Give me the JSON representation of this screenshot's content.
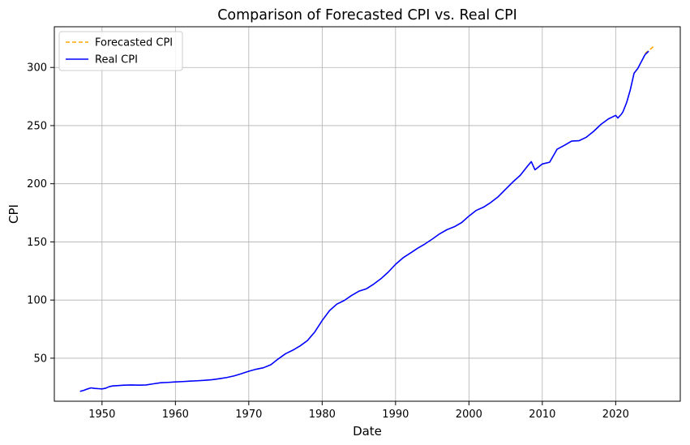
{
  "chart_data": {
    "type": "line",
    "title": "Comparison of Forecasted CPI vs. Real CPI",
    "xlabel": "Date",
    "ylabel": "CPI",
    "xlim": [
      1943.5,
      2028.8
    ],
    "ylim": [
      13,
      335
    ],
    "xticks": [
      1950,
      1960,
      1970,
      1980,
      1990,
      2000,
      2010,
      2020
    ],
    "yticks": [
      50,
      100,
      150,
      200,
      250,
      300
    ],
    "grid": true,
    "legend_position": "upper-left",
    "series": [
      {
        "name": "Forecasted CPI",
        "color": "#ffa500",
        "style": "dashed",
        "points": [
          [
            2024.0,
            312.0
          ],
          [
            2024.3,
            313.6
          ],
          [
            2024.6,
            315.0
          ],
          [
            2024.9,
            316.6
          ],
          [
            2025.2,
            318.2
          ]
        ]
      },
      {
        "name": "Real CPI",
        "color": "#0000ff",
        "style": "solid",
        "points": [
          [
            1947.0,
            21.5
          ],
          [
            1947.5,
            22.3
          ],
          [
            1948.0,
            23.5
          ],
          [
            1948.5,
            24.5
          ],
          [
            1949.0,
            24.0
          ],
          [
            1949.5,
            23.8
          ],
          [
            1950.0,
            23.6
          ],
          [
            1950.5,
            24.2
          ],
          [
            1951.0,
            25.6
          ],
          [
            1951.5,
            26.2
          ],
          [
            1952.0,
            26.4
          ],
          [
            1953.0,
            26.8
          ],
          [
            1954.0,
            27.0
          ],
          [
            1955.0,
            26.8
          ],
          [
            1956.0,
            27.0
          ],
          [
            1957.0,
            28.0
          ],
          [
            1958.0,
            28.9
          ],
          [
            1959.0,
            29.2
          ],
          [
            1960.0,
            29.6
          ],
          [
            1961.0,
            29.9
          ],
          [
            1962.0,
            30.3
          ],
          [
            1963.0,
            30.6
          ],
          [
            1964.0,
            31.0
          ],
          [
            1965.0,
            31.5
          ],
          [
            1966.0,
            32.4
          ],
          [
            1967.0,
            33.4
          ],
          [
            1968.0,
            34.8
          ],
          [
            1969.0,
            36.7
          ],
          [
            1970.0,
            38.8
          ],
          [
            1971.0,
            40.5
          ],
          [
            1972.0,
            41.8
          ],
          [
            1973.0,
            44.4
          ],
          [
            1974.0,
            49.3
          ],
          [
            1975.0,
            53.8
          ],
          [
            1976.0,
            56.9
          ],
          [
            1977.0,
            60.6
          ],
          [
            1978.0,
            65.2
          ],
          [
            1979.0,
            72.6
          ],
          [
            1980.0,
            82.4
          ],
          [
            1981.0,
            90.9
          ],
          [
            1982.0,
            96.5
          ],
          [
            1983.0,
            99.6
          ],
          [
            1984.0,
            103.9
          ],
          [
            1985.0,
            107.6
          ],
          [
            1986.0,
            109.6
          ],
          [
            1987.0,
            113.6
          ],
          [
            1988.0,
            118.3
          ],
          [
            1989.0,
            124.0
          ],
          [
            1990.0,
            130.7
          ],
          [
            1991.0,
            136.2
          ],
          [
            1992.0,
            140.3
          ],
          [
            1993.0,
            144.5
          ],
          [
            1994.0,
            148.2
          ],
          [
            1995.0,
            152.4
          ],
          [
            1996.0,
            156.9
          ],
          [
            1997.0,
            160.5
          ],
          [
            1998.0,
            163.0
          ],
          [
            1999.0,
            166.6
          ],
          [
            2000.0,
            172.2
          ],
          [
            2001.0,
            177.1
          ],
          [
            2002.0,
            179.9
          ],
          [
            2003.0,
            184.0
          ],
          [
            2004.0,
            188.9
          ],
          [
            2005.0,
            195.3
          ],
          [
            2006.0,
            201.6
          ],
          [
            2007.0,
            207.3
          ],
          [
            2008.0,
            215.3
          ],
          [
            2008.5,
            219.0
          ],
          [
            2009.0,
            212.0
          ],
          [
            2009.5,
            214.5
          ],
          [
            2010.0,
            217.0
          ],
          [
            2011.0,
            218.5
          ],
          [
            2011.5,
            224.0
          ],
          [
            2012.0,
            229.6
          ],
          [
            2013.0,
            233.0
          ],
          [
            2014.0,
            236.7
          ],
          [
            2015.0,
            237.0
          ],
          [
            2016.0,
            240.0
          ],
          [
            2017.0,
            245.1
          ],
          [
            2018.0,
            251.1
          ],
          [
            2019.0,
            255.7
          ],
          [
            2020.0,
            258.8
          ],
          [
            2020.3,
            256.5
          ],
          [
            2020.8,
            260.0
          ],
          [
            2021.0,
            262.0
          ],
          [
            2021.5,
            270.0
          ],
          [
            2022.0,
            281.0
          ],
          [
            2022.5,
            295.0
          ],
          [
            2023.0,
            299.0
          ],
          [
            2023.5,
            305.0
          ],
          [
            2024.0,
            311.0
          ],
          [
            2024.5,
            314.0
          ]
        ]
      }
    ]
  }
}
